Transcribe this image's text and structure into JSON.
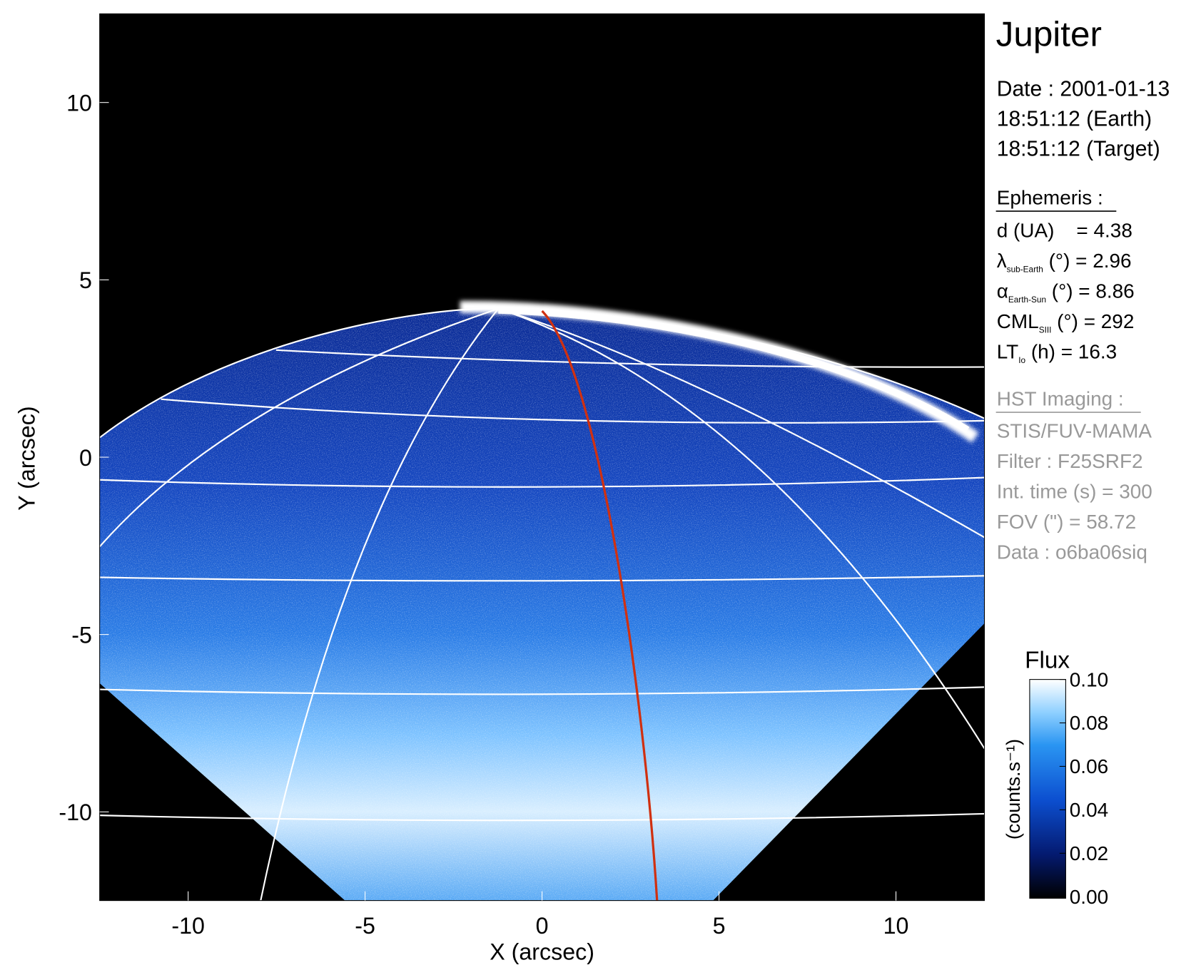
{
  "chart_data": {
    "type": "image",
    "xlabel": "X (arcsec)",
    "ylabel": "Y (arcsec)",
    "xlim": [
      -12.5,
      12.5
    ],
    "ylim": [
      -12.5,
      12.5
    ],
    "xticks": [
      -10,
      -5,
      0,
      5,
      10
    ],
    "yticks": [
      -10,
      -5,
      0,
      5,
      10
    ],
    "colorbar": {
      "title": "Flux",
      "label": "(counts.s⁻¹)",
      "lim": [
        0,
        0.1
      ],
      "ticks": [
        {
          "value": 0,
          "label": "0.00"
        },
        {
          "value": 0.02,
          "label": "0.02"
        },
        {
          "value": 0.04,
          "label": "0.04"
        },
        {
          "value": 0.06,
          "label": "0.06"
        },
        {
          "value": 0.08,
          "label": "0.08"
        },
        {
          "value": 0.1,
          "label": "0.10"
        }
      ]
    }
  },
  "info": {
    "title": "Jupiter",
    "date": [
      "Date : 2001-01-13",
      "18:51:12 (Earth)",
      "18:51:12 (Target)"
    ],
    "ephemeris": {
      "heading": "Ephemeris :",
      "rows": [
        {
          "text": "d (UA)    = 4.38"
        },
        {
          "symbol": "λ",
          "sub": "sub-Earth",
          "text": " (°) = 2.96"
        },
        {
          "symbol": "α",
          "sub": "Earth-Sun",
          "text": " (°) = 8.86"
        },
        {
          "symbol": "CML",
          "sub": "SIII",
          "text": " (°) = 292"
        },
        {
          "symbol": "LT",
          "sub": "Io",
          "text": " (h) = 16.3"
        }
      ]
    },
    "imaging": {
      "heading": "HST Imaging :",
      "rows": [
        "STIS/FUV-MAMA",
        "Filter : F25SRF2",
        "Int. time (s) = 300",
        "FOV (\") = 58.72",
        "Data : o6ba06siq"
      ]
    }
  }
}
